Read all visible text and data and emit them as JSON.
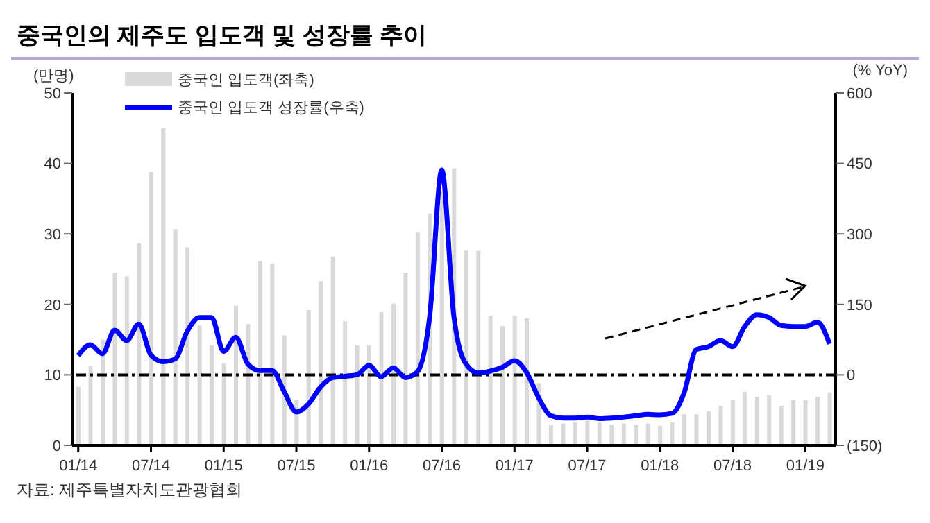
{
  "chart_data": {
    "type": "bar",
    "title": "중국인의 제주도 입도객 및 성장률 추이",
    "ylabel": "(만명)",
    "y2label": "(% YoY)",
    "categories": [
      "01/14",
      null,
      null,
      null,
      null,
      null,
      "07/14",
      null,
      null,
      null,
      null,
      null,
      "01/15",
      null,
      null,
      null,
      null,
      null,
      "07/15",
      null,
      null,
      null,
      null,
      null,
      "01/16",
      null,
      null,
      null,
      null,
      null,
      "07/16",
      null,
      null,
      null,
      null,
      null,
      "01/17",
      null,
      null,
      null,
      null,
      null,
      "07/17",
      null,
      null,
      null,
      null,
      null,
      "01/18",
      null,
      null,
      null,
      null,
      null,
      "07/18",
      null,
      null,
      null,
      null,
      null,
      "01/19",
      null,
      null
    ],
    "series": [
      {
        "name": "중국인 입도객(좌축)",
        "color": "#d9d9d9",
        "values": [
          8.3,
          11.2,
          15,
          24.5,
          24,
          28.7,
          38.8,
          45,
          30.7,
          28.1,
          17,
          14.2,
          11.6,
          19.8,
          17.2,
          26.2,
          25.8,
          15.6,
          6.5,
          19.2,
          23.3,
          26.8,
          17.6,
          14.2,
          14.2,
          18.9,
          20.1,
          24.5,
          30.2,
          32.9,
          36,
          39.3,
          27.7,
          27.6,
          18.4,
          16.9,
          18.4,
          18,
          8.8,
          2.9,
          3.1,
          3.3,
          3.5,
          3.3,
          2.9,
          3.1,
          2.9,
          3.1,
          2.8,
          3.3,
          4.4,
          4.4,
          4.9,
          5.6,
          6.5,
          7.6,
          6.9,
          7.1,
          5.6,
          6.4,
          6.4,
          6.9,
          7.5
        ]
      },
      {
        "type": "line",
        "axis": "y2",
        "name": "중국인 입도객 성장률(우축)",
        "color": "#0000ff",
        "values": [
          41,
          64,
          45,
          95,
          73,
          108,
          42,
          28,
          34,
          93,
          122,
          122,
          50,
          80,
          23,
          9,
          9,
          -36,
          -79,
          -62,
          -26,
          -6,
          -3,
          0,
          20,
          -4,
          15,
          -6,
          7,
          124,
          436,
          124,
          23,
          4,
          8,
          16,
          30,
          5,
          -49,
          -87,
          -92,
          -92,
          -90,
          -93,
          -92,
          -90,
          -87,
          -84,
          -85,
          -82,
          -38,
          54,
          60,
          73,
          60,
          103,
          128,
          122,
          105,
          103,
          103,
          112,
          66
        ]
      }
    ],
    "ylim": [
      0,
      50
    ],
    "yticks": [
      0,
      10,
      20,
      30,
      40,
      50
    ],
    "y2lim": [
      -150,
      600
    ],
    "y2ticks": [
      {
        "value": -150,
        "label": "(150)"
      },
      0,
      150,
      300,
      450,
      600
    ],
    "ref_lines": [
      {
        "axis": "y2",
        "value": 0,
        "color": "#000000",
        "line_style": "dashed"
      }
    ],
    "legend": "top left",
    "grid": false,
    "marker": "none",
    "annotations": [
      "자료: 제주특별자치도관광협회"
    ]
  }
}
